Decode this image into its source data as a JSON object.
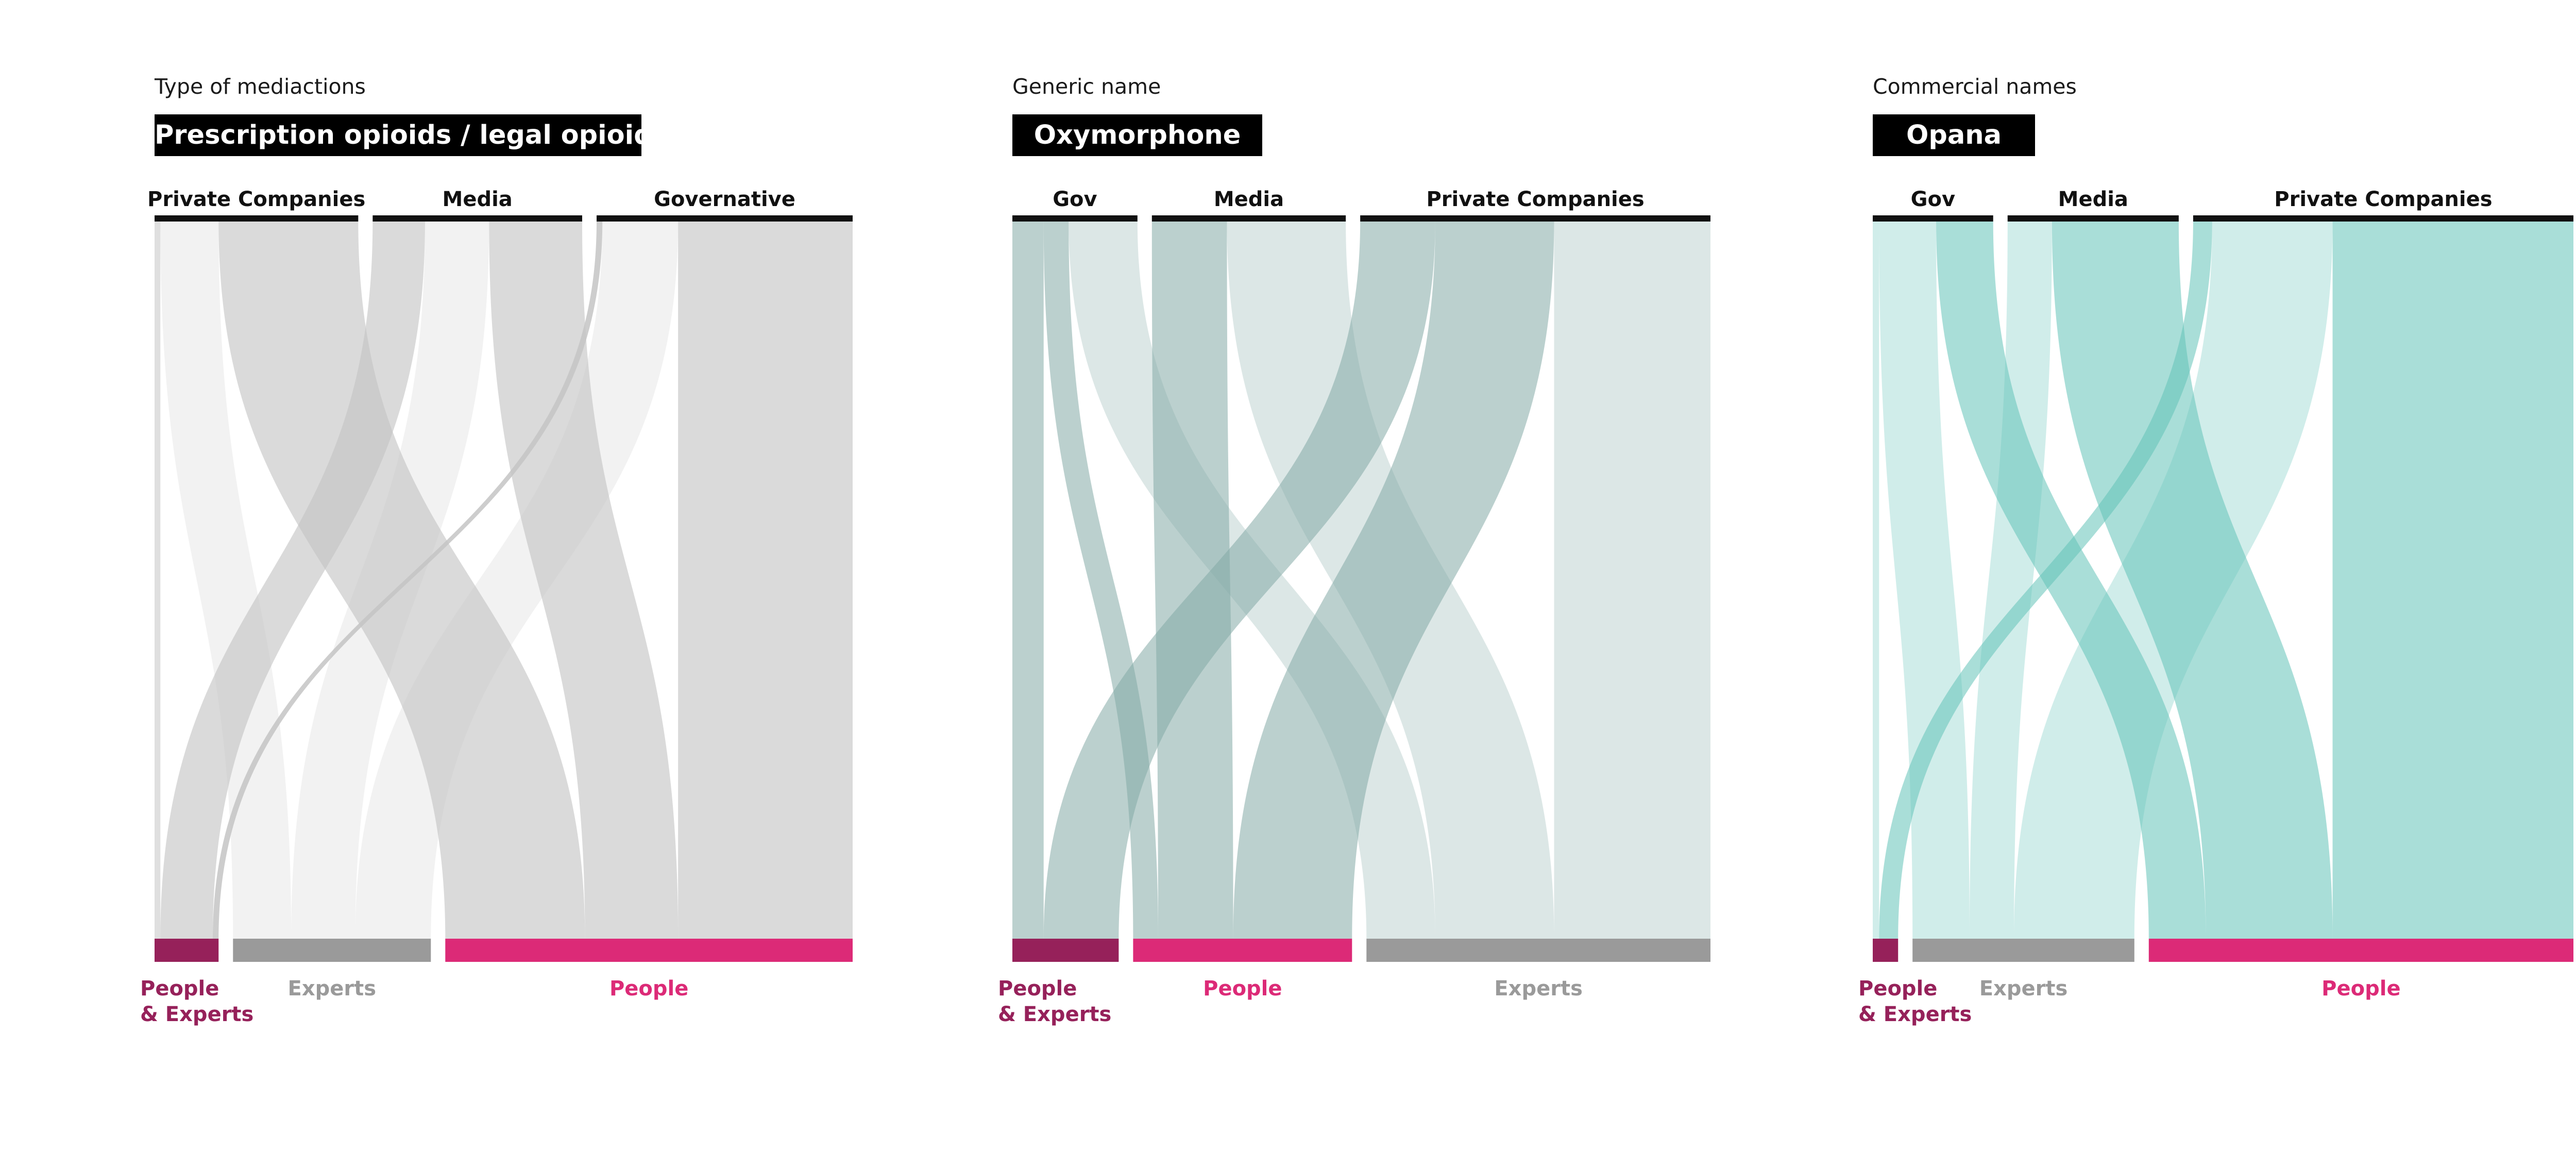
{
  "chart_data": [
    {
      "type": "sankey",
      "caption": "Type of mediactions",
      "title": "Prescription opioids / legal opioids",
      "flow_color": "#c4c4c4",
      "sources": [
        {
          "name": "Private Companies",
          "value": 35
        },
        {
          "name": "Media",
          "value": 36
        },
        {
          "name": "Governative",
          "value": 44
        }
      ],
      "targets": [
        {
          "name": "People\n& Experts",
          "value": 11,
          "color": "#96215a"
        },
        {
          "name": "Experts",
          "value": 34,
          "color": "#9a9a9a"
        },
        {
          "name": "People",
          "value": 70,
          "color": "#dc2a77"
        }
      ],
      "flows": [
        {
          "source": "Private Companies",
          "target": "People\n& Experts",
          "value": 1,
          "shade": 0.55
        },
        {
          "source": "Private Companies",
          "target": "Experts",
          "value": 10,
          "shade": 0.22
        },
        {
          "source": "Private Companies",
          "target": "People",
          "value": 24,
          "shade": 0.62
        },
        {
          "source": "Media",
          "target": "People\n& Experts",
          "value": 9,
          "shade": 0.62
        },
        {
          "source": "Media",
          "target": "Experts",
          "value": 11,
          "shade": 0.22
        },
        {
          "source": "Media",
          "target": "People",
          "value": 16,
          "shade": 0.62
        },
        {
          "source": "Governative",
          "target": "People\n& Experts",
          "value": 1,
          "shade": 0.85
        },
        {
          "source": "Governative",
          "target": "Experts",
          "value": 13,
          "shade": 0.22
        },
        {
          "source": "Governative",
          "target": "People",
          "value": 30,
          "shade": 0.62
        }
      ]
    },
    {
      "type": "sankey",
      "caption": "Generic name",
      "title": "Oxymorphone",
      "flow_color": "#83aaa5",
      "sources": [
        {
          "name": "Gov",
          "value": 20
        },
        {
          "name": "Media",
          "value": 31
        },
        {
          "name": "Private Companies",
          "value": 56
        }
      ],
      "targets": [
        {
          "name": "People\n& Experts",
          "value": 17,
          "color": "#96215a"
        },
        {
          "name": "People",
          "value": 35,
          "color": "#dc2a77"
        },
        {
          "name": "Experts",
          "value": 55,
          "color": "#9a9a9a"
        }
      ],
      "flows": [
        {
          "source": "Gov",
          "target": "People\n& Experts",
          "value": 5,
          "shade": 0.55
        },
        {
          "source": "Gov",
          "target": "People",
          "value": 4,
          "shade": 0.55
        },
        {
          "source": "Gov",
          "target": "Experts",
          "value": 11,
          "shade": 0.28
        },
        {
          "source": "Media",
          "target": "People",
          "value": 12,
          "shade": 0.55
        },
        {
          "source": "Media",
          "target": "Experts",
          "value": 19,
          "shade": 0.28
        },
        {
          "source": "Private Companies",
          "target": "People\n& Experts",
          "value": 12,
          "shade": 0.55
        },
        {
          "source": "Private Companies",
          "target": "People",
          "value": 19,
          "shade": 0.55
        },
        {
          "source": "Private Companies",
          "target": "Experts",
          "value": 25,
          "shade": 0.28
        }
      ]
    },
    {
      "type": "sankey",
      "caption": "Commercial names",
      "title": "Opana",
      "flow_color": "#62c3b8",
      "sources": [
        {
          "name": "Gov",
          "value": 19
        },
        {
          "name": "Media",
          "value": 27
        },
        {
          "name": "Private Companies",
          "value": 60
        }
      ],
      "targets": [
        {
          "name": "People\n& Experts",
          "value": 4,
          "color": "#96215a"
        },
        {
          "name": "Experts",
          "value": 35,
          "color": "#9a9a9a"
        },
        {
          "name": "People",
          "value": 67,
          "color": "#dc2a77"
        }
      ],
      "flows": [
        {
          "source": "Gov",
          "target": "People\n& Experts",
          "value": 1,
          "shade": 0.3
        },
        {
          "source": "Gov",
          "target": "Experts",
          "value": 9,
          "shade": 0.3
        },
        {
          "source": "Gov",
          "target": "People",
          "value": 9,
          "shade": 0.55
        },
        {
          "source": "Media",
          "target": "Experts",
          "value": 7,
          "shade": 0.3
        },
        {
          "source": "Media",
          "target": "People",
          "value": 20,
          "shade": 0.55
        },
        {
          "source": "Private Companies",
          "target": "People\n& Experts",
          "value": 3,
          "shade": 0.55
        },
        {
          "source": "Private Companies",
          "target": "Experts",
          "value": 19,
          "shade": 0.3
        },
        {
          "source": "Private Companies",
          "target": "People",
          "value": 38,
          "shade": 0.55
        }
      ]
    }
  ]
}
